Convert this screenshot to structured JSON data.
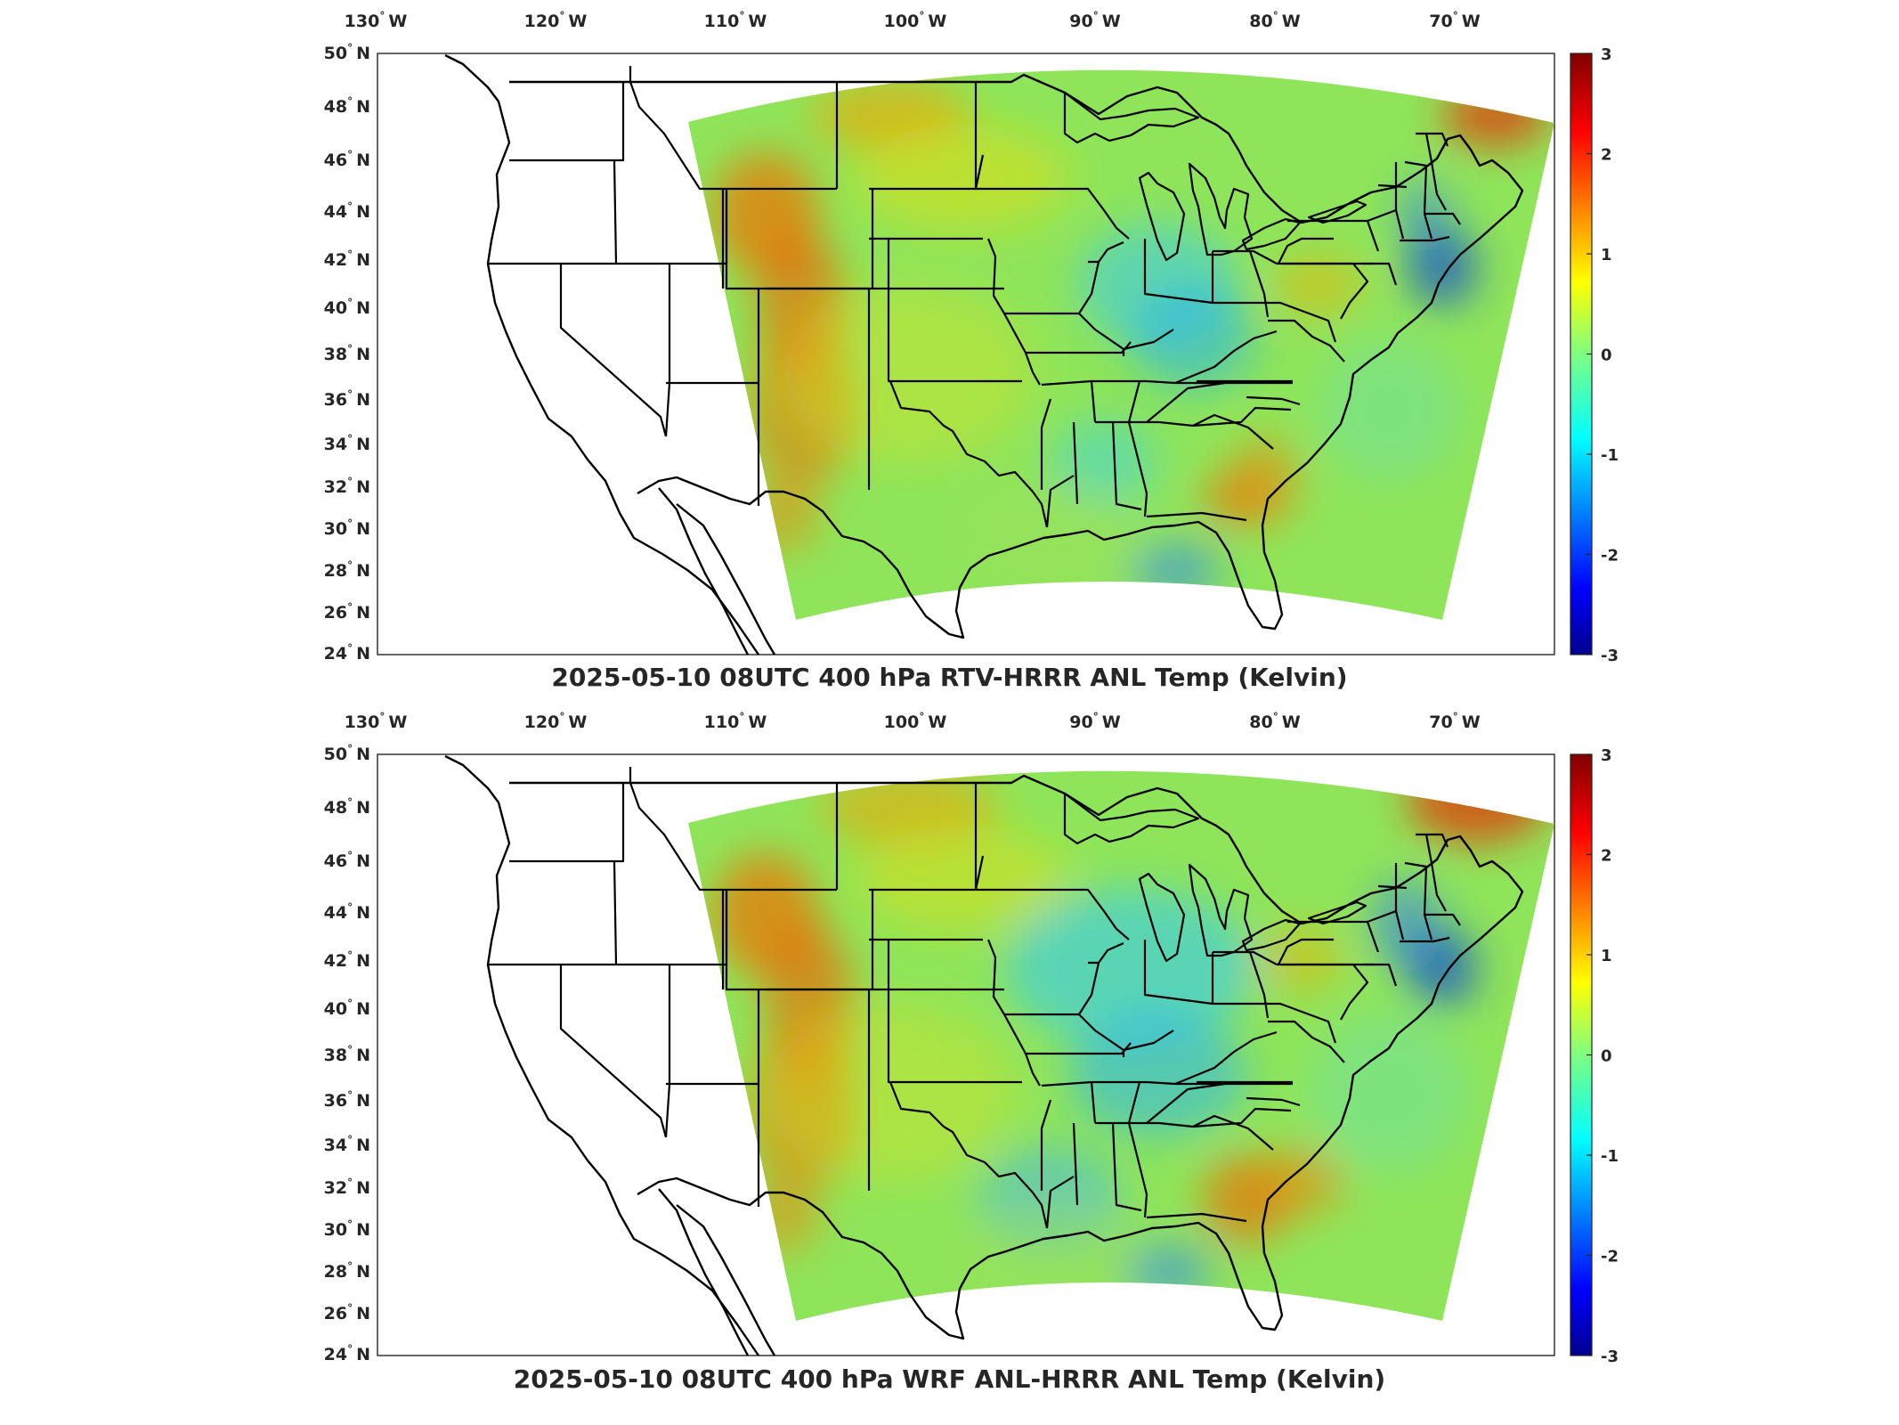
{
  "panels": [
    {
      "title": "2025-05-10 08UTC 400 hPa RTV-HRRR ANL Temp (Kelvin)",
      "pattern": "rtv"
    },
    {
      "title": "2025-05-10 08UTC 400 hPa WRF ANL-HRRR ANL Temp (Kelvin)",
      "pattern": "wrf"
    }
  ],
  "lon_labels": [
    {
      "value": "130",
      "unit": "W"
    },
    {
      "value": "120",
      "unit": "W"
    },
    {
      "value": "110",
      "unit": "W"
    },
    {
      "value": "100",
      "unit": "W"
    },
    {
      "value": "90",
      "unit": "W"
    },
    {
      "value": "80",
      "unit": "W"
    },
    {
      "value": "70",
      "unit": "W"
    }
  ],
  "lat_labels": [
    {
      "value": "50",
      "unit": "N"
    },
    {
      "value": "48",
      "unit": "N"
    },
    {
      "value": "46",
      "unit": "N"
    },
    {
      "value": "44",
      "unit": "N"
    },
    {
      "value": "42",
      "unit": "N"
    },
    {
      "value": "40",
      "unit": "N"
    },
    {
      "value": "38",
      "unit": "N"
    },
    {
      "value": "36",
      "unit": "N"
    },
    {
      "value": "34",
      "unit": "N"
    },
    {
      "value": "32",
      "unit": "N"
    },
    {
      "value": "30",
      "unit": "N"
    },
    {
      "value": "28",
      "unit": "N"
    },
    {
      "value": "26",
      "unit": "N"
    },
    {
      "value": "24",
      "unit": "N"
    }
  ],
  "colorbar": {
    "ticks": [
      "3",
      "2",
      "1",
      "0",
      "-1",
      "-2",
      "-3"
    ],
    "range": [
      -3,
      3
    ],
    "colormap": "jet"
  },
  "colors": {
    "axis": "#262626",
    "boundary": "#000000",
    "jet_stops": [
      "#00008f",
      "#0000ff",
      "#00ffff",
      "#ffff00",
      "#ff0000",
      "#800000"
    ]
  }
}
